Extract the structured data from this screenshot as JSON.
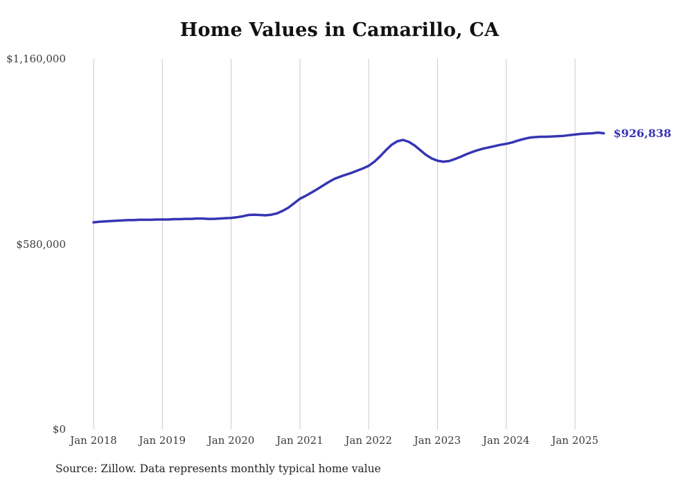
{
  "title": "Home Values in Camarillo, CA",
  "source_note": "Source: Zillow. Data represents monthly typical home value",
  "end_label": "$926,838",
  "colors": {
    "line": "#3634b3",
    "grid": "#c9c9c9",
    "axis_text": "#3a3a3a",
    "title_text": "#111111"
  },
  "chart_data": {
    "type": "line",
    "title": "Home Values in Camarillo, CA",
    "xlabel": "",
    "ylabel": "",
    "ylim": [
      0,
      1160000
    ],
    "grid": "vertical-only",
    "legend": "none",
    "y_ticks": [
      {
        "label": "$0",
        "value": 0
      },
      {
        "label": "$580,000",
        "value": 580000
      },
      {
        "label": "$1,160,000",
        "value": 1160000
      }
    ],
    "x_ticks": [
      {
        "label": "Jan 2018",
        "month_index": 0
      },
      {
        "label": "Jan 2019",
        "month_index": 12
      },
      {
        "label": "Jan 2020",
        "month_index": 24
      },
      {
        "label": "Jan 2021",
        "month_index": 36
      },
      {
        "label": "Jan 2022",
        "month_index": 48
      },
      {
        "label": "Jan 2023",
        "month_index": 60
      },
      {
        "label": "Jan 2024",
        "month_index": 72
      },
      {
        "label": "Jan 2025",
        "month_index": 84
      }
    ],
    "series": [
      {
        "name": "Monthly typical home value",
        "start": "2018-01",
        "interval": "month",
        "last_value_label": "$926,838",
        "values": [
          648000,
          650000,
          651000,
          652000,
          653000,
          654000,
          655000,
          655000,
          656000,
          656000,
          656000,
          657000,
          657000,
          657000,
          658000,
          658000,
          659000,
          659000,
          660000,
          660000,
          659000,
          659000,
          660000,
          661000,
          662000,
          664000,
          667000,
          671000,
          672000,
          671000,
          670000,
          672000,
          676000,
          684000,
          694000,
          708000,
          722000,
          731000,
          741000,
          752000,
          763000,
          774000,
          784000,
          791000,
          797000,
          803000,
          810000,
          817000,
          825000,
          838000,
          855000,
          874000,
          891000,
          902000,
          906000,
          900000,
          889000,
          874000,
          859000,
          848000,
          841000,
          838000,
          840000,
          846000,
          853000,
          861000,
          868000,
          874000,
          879000,
          883000,
          887000,
          891000,
          894000,
          898000,
          904000,
          909000,
          913000,
          915000,
          916000,
          916000,
          917000,
          918000,
          919000,
          921000,
          923000,
          925000,
          926000,
          927000,
          929000,
          926838
        ]
      }
    ]
  }
}
